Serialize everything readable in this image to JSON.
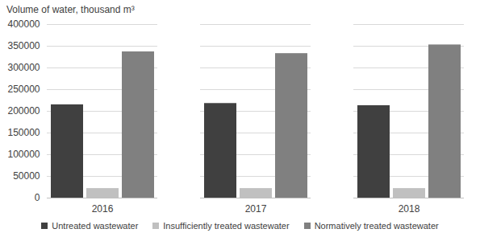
{
  "chart_data": {
    "type": "bar",
    "y_label": "Volume of water, thousand m³",
    "categories": [
      "2016",
      "2017",
      "2018"
    ],
    "series": [
      {
        "name": "Untreated wastewater",
        "color": "#404040",
        "values": [
          215000,
          218000,
          213000
        ]
      },
      {
        "name": "Insufficiently treated wastewater",
        "color": "#c0c0c0",
        "values": [
          22000,
          22000,
          22000
        ]
      },
      {
        "name": "Normatively treated wastewater",
        "color": "#808080",
        "values": [
          337000,
          333000,
          353000
        ]
      }
    ],
    "ylim": [
      0,
      400000
    ],
    "yticks": [
      0,
      50000,
      100000,
      150000,
      200000,
      250000,
      300000,
      350000,
      400000
    ],
    "grid": true,
    "legend": "bottom"
  }
}
